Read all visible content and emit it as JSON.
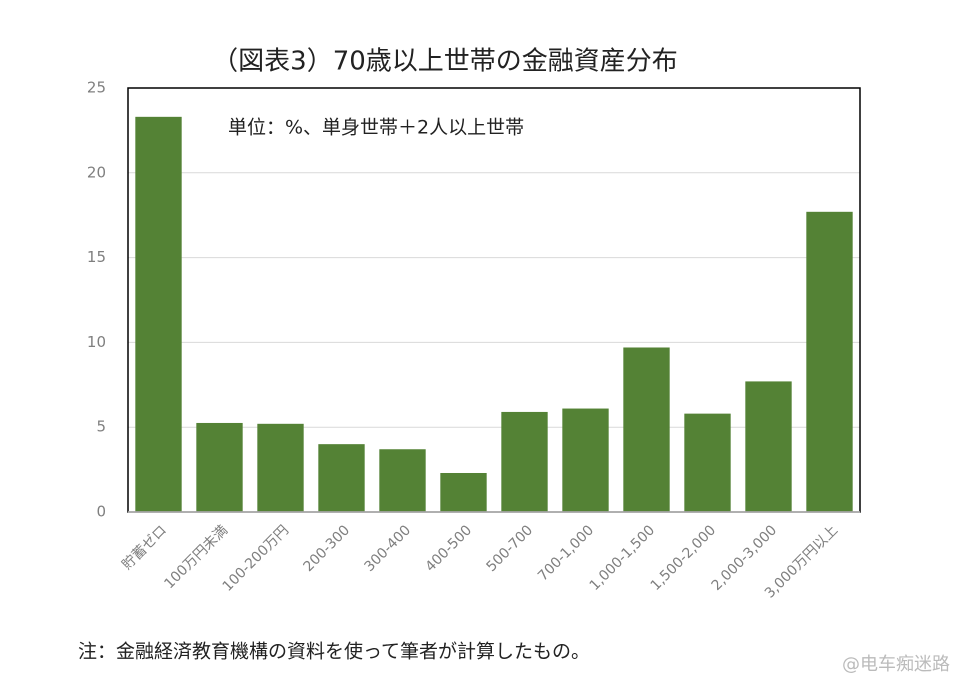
{
  "chart_data": {
    "type": "bar",
    "title": "（図表3）70歳以上世帯の金融資産分布",
    "annotation": "単位：%、単身世帯＋2人以上世帯",
    "note": "注：金融経済教育機構の資料を使って筆者が計算したもの。",
    "watermark": "@电车痴迷路",
    "categories": [
      "貯蓄ゼロ",
      "100万円未満",
      "100-200万円",
      "200-300",
      "300-400",
      "400-500",
      "500-700",
      "700-1,000",
      "1,000-1,500",
      "1,500-2,000",
      "2,000-3,000",
      "3,000万円以上"
    ],
    "values": [
      23.3,
      5.25,
      5.2,
      4.0,
      3.7,
      2.3,
      5.9,
      6.1,
      9.7,
      5.8,
      7.7,
      17.7
    ],
    "color": "#548235",
    "ylim": [
      0,
      25
    ],
    "yticks": [
      0,
      5,
      10,
      15,
      20,
      25
    ],
    "grid": true
  }
}
